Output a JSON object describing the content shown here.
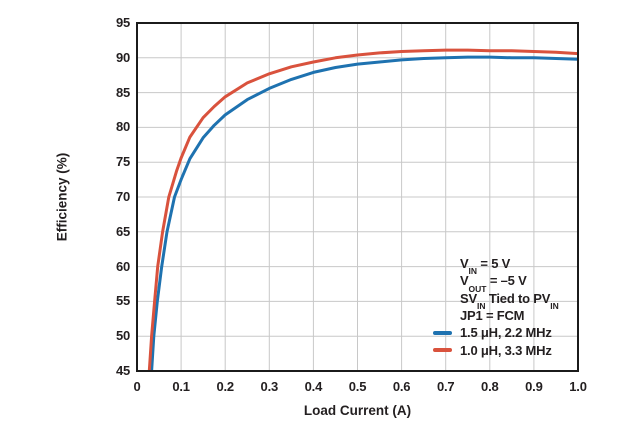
{
  "colors": {
    "blue": "#1e72b0",
    "red": "#d9523d",
    "grid": "#c8c8c8",
    "axis_border": "#1b1b1b",
    "text": "#231f20",
    "background": "#ffffff"
  },
  "chart_data": {
    "type": "line",
    "title": "",
    "xlabel": "Load Current (A)",
    "ylabel": "Efficiency (%)",
    "xlim": [
      0,
      1.0
    ],
    "ylim": [
      45,
      95
    ],
    "grid": true,
    "legend_position": "inside-bottom-right",
    "x_tick_values": [
      0,
      0.1,
      0.2,
      0.3,
      0.4,
      0.5,
      0.6,
      0.7,
      0.8,
      0.9,
      1.0
    ],
    "x_tick_labels": [
      "0",
      "0.1",
      "0.2",
      "0.3",
      "0.4",
      "0.5",
      "0.6",
      "0.7",
      "0.8",
      "0.9",
      "1.0"
    ],
    "y_tick_values": [
      95,
      90,
      85,
      80,
      75,
      70,
      65,
      60,
      55,
      50,
      45
    ],
    "y_tick_labels": [
      "95",
      "90",
      "85",
      "80",
      "75",
      "70",
      "65",
      "60",
      "55",
      "50",
      "45"
    ],
    "series": [
      {
        "name": "1.5 μH, 2.2 MHz",
        "color_key": "blue",
        "points": [
          [
            0.033,
            45
          ],
          [
            0.038,
            50
          ],
          [
            0.046,
            55
          ],
          [
            0.056,
            60
          ],
          [
            0.068,
            65
          ],
          [
            0.085,
            70
          ],
          [
            0.1,
            72.5
          ],
          [
            0.12,
            75.5
          ],
          [
            0.15,
            78.5
          ],
          [
            0.175,
            80.3
          ],
          [
            0.2,
            81.8
          ],
          [
            0.25,
            84.0
          ],
          [
            0.3,
            85.6
          ],
          [
            0.35,
            86.9
          ],
          [
            0.4,
            87.9
          ],
          [
            0.45,
            88.6
          ],
          [
            0.5,
            89.1
          ],
          [
            0.55,
            89.4
          ],
          [
            0.6,
            89.7
          ],
          [
            0.65,
            89.9
          ],
          [
            0.7,
            90.0
          ],
          [
            0.75,
            90.1
          ],
          [
            0.8,
            90.1
          ],
          [
            0.85,
            90.0
          ],
          [
            0.9,
            90.0
          ],
          [
            0.95,
            89.9
          ],
          [
            1.0,
            89.8
          ]
        ]
      },
      {
        "name": "1.0 μH, 3.3 MHz",
        "color_key": "red",
        "points": [
          [
            0.028,
            45
          ],
          [
            0.033,
            50
          ],
          [
            0.04,
            55
          ],
          [
            0.047,
            60
          ],
          [
            0.058,
            65
          ],
          [
            0.072,
            70
          ],
          [
            0.09,
            73.8
          ],
          [
            0.1,
            75.6
          ],
          [
            0.12,
            78.6
          ],
          [
            0.15,
            81.4
          ],
          [
            0.175,
            83.0
          ],
          [
            0.2,
            84.4
          ],
          [
            0.25,
            86.4
          ],
          [
            0.3,
            87.7
          ],
          [
            0.35,
            88.7
          ],
          [
            0.4,
            89.4
          ],
          [
            0.45,
            90.0
          ],
          [
            0.5,
            90.4
          ],
          [
            0.55,
            90.7
          ],
          [
            0.6,
            90.9
          ],
          [
            0.65,
            91.0
          ],
          [
            0.7,
            91.1
          ],
          [
            0.75,
            91.1
          ],
          [
            0.8,
            91.0
          ],
          [
            0.85,
            91.0
          ],
          [
            0.9,
            90.9
          ],
          [
            0.95,
            90.8
          ],
          [
            1.0,
            90.6
          ]
        ]
      }
    ],
    "annotations": [
      {
        "segments": [
          [
            "V",
            false
          ],
          [
            "IN",
            true
          ],
          [
            " = 5 V",
            false
          ]
        ]
      },
      {
        "segments": [
          [
            "V",
            false
          ],
          [
            "OUT",
            true
          ],
          [
            " = –5 V",
            false
          ]
        ]
      },
      {
        "segments": [
          [
            "SV",
            false
          ],
          [
            "IN",
            true
          ],
          [
            " Tied to PV",
            false
          ],
          [
            "IN",
            true
          ]
        ]
      },
      {
        "segments": [
          [
            "JP1 = FCM",
            false
          ]
        ]
      }
    ]
  }
}
